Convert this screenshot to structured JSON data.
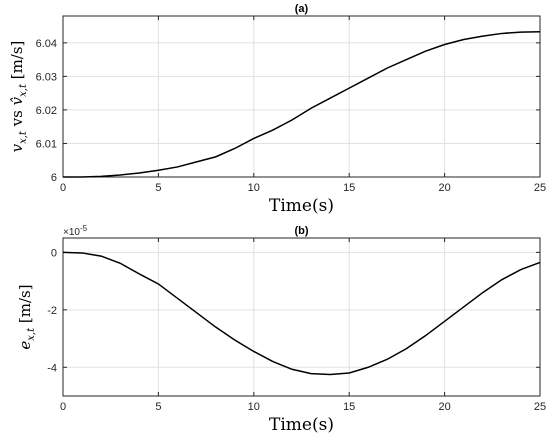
{
  "chart_data": [
    {
      "type": "line",
      "title": "(a)",
      "xlabel": "Time(s)",
      "ylabel_parts": [
        "v",
        "x,t",
        " vs ",
        "v̂",
        "x,t",
        " [m/s]"
      ],
      "xlim": [
        0,
        25
      ],
      "ylim": [
        6.0,
        6.048
      ],
      "xticks": [
        0,
        5,
        10,
        15,
        20,
        25
      ],
      "xtick_labels": [
        "0",
        "5",
        "10",
        "15",
        "20",
        "25"
      ],
      "yticks": [
        6.0,
        6.01,
        6.02,
        6.03,
        6.04
      ],
      "ytick_labels": [
        "6",
        "6.01",
        "6.02",
        "6.03",
        "6.04"
      ],
      "grid": true,
      "series": [
        {
          "color": "#000000",
          "x": [
            0,
            1,
            2,
            3,
            4,
            5,
            6,
            7,
            8,
            9,
            10,
            11,
            12,
            13,
            14,
            15,
            16,
            17,
            18,
            19,
            20,
            21,
            22,
            23,
            24,
            25
          ],
          "y": [
            6.0,
            6.0,
            6.0002,
            6.0006,
            6.0012,
            6.002,
            6.003,
            6.0045,
            6.006,
            6.0085,
            6.0115,
            6.014,
            6.017,
            6.0205,
            6.0235,
            6.0265,
            6.0295,
            6.0325,
            6.035,
            6.0375,
            6.0395,
            6.041,
            6.042,
            6.0428,
            6.0432,
            6.0433
          ]
        }
      ]
    },
    {
      "type": "line",
      "title": "(b)",
      "xlabel": "Time(s)",
      "ylabel_parts": [
        "e",
        "x,t",
        " [m/s]"
      ],
      "exponent_label": "×10",
      "exponent_power": "-5",
      "xlim": [
        0,
        25
      ],
      "ylim": [
        -5,
        0.5
      ],
      "xticks": [
        0,
        5,
        10,
        15,
        20,
        25
      ],
      "xtick_labels": [
        "0",
        "5",
        "10",
        "15",
        "20",
        "25"
      ],
      "yticks": [
        0,
        -2,
        -4
      ],
      "ytick_labels": [
        "0",
        "-2",
        "-4"
      ],
      "grid": true,
      "series": [
        {
          "color": "#000000",
          "x": [
            0,
            1,
            2,
            3,
            4,
            5,
            6,
            7,
            8,
            9,
            10,
            11,
            12,
            13,
            14,
            15,
            16,
            17,
            18,
            19,
            20,
            21,
            22,
            23,
            24,
            25
          ],
          "y": [
            0,
            -0.02,
            -0.13,
            -0.38,
            -0.75,
            -1.1,
            -1.6,
            -2.1,
            -2.6,
            -3.05,
            -3.45,
            -3.8,
            -4.07,
            -4.22,
            -4.25,
            -4.2,
            -4.0,
            -3.72,
            -3.35,
            -2.9,
            -2.4,
            -1.9,
            -1.4,
            -0.95,
            -0.6,
            -0.35
          ]
        }
      ]
    }
  ]
}
